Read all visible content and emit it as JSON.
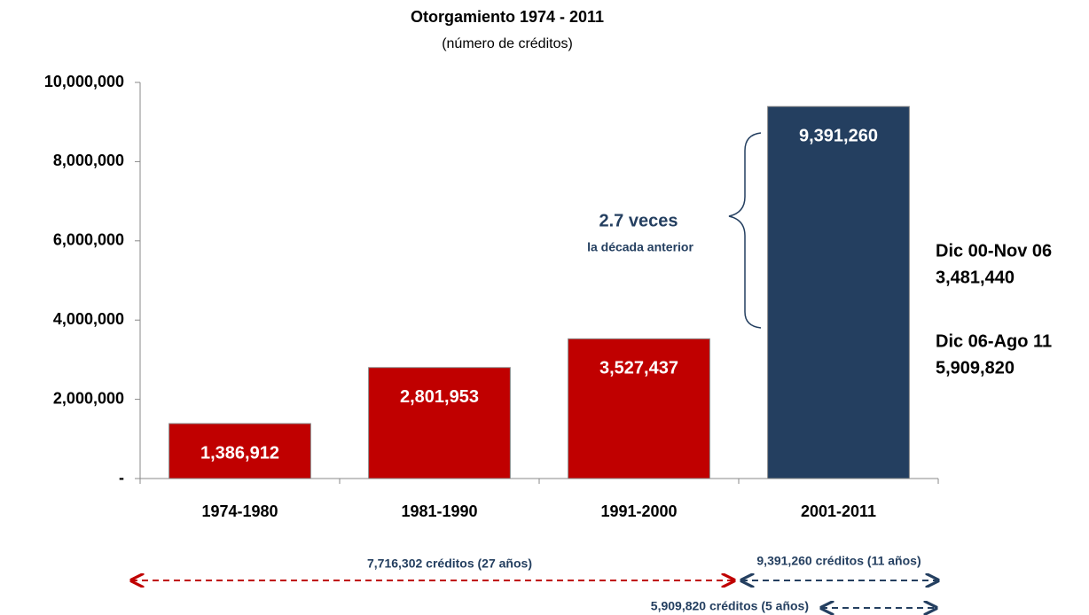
{
  "chart_data": {
    "type": "bar",
    "title": "Otorgamiento 1974 - 2011",
    "subtitle": "(número de créditos)",
    "categories": [
      "1974-1980",
      "1981-1990",
      "1991-2000",
      "2001-2011"
    ],
    "values": [
      1386912,
      2801953,
      3527437,
      9391260
    ],
    "value_labels": [
      "1,386,912",
      "2,801,953",
      "3,527,437",
      "9,391,260"
    ],
    "colors": [
      "#c00000",
      "#c00000",
      "#c00000",
      "#243f60"
    ],
    "ylim": [
      0,
      10000000
    ],
    "yticks": [
      {
        "value": 0,
        "label": "-"
      },
      {
        "value": 2000000,
        "label": "2,000,000"
      },
      {
        "value": 4000000,
        "label": "4,000,000"
      },
      {
        "value": 6000000,
        "label": "6,000,000"
      },
      {
        "value": 8000000,
        "label": "8,000,000"
      },
      {
        "value": 10000000,
        "label": "10,000,000"
      }
    ],
    "grid": false,
    "annotations": {
      "ratio": "2.7 veces",
      "ratio_note": "la década anterior",
      "period1": "Dic 00-Nov 06",
      "period1_value": "3,481,440",
      "period2": "Dic 06-Ago 11",
      "period2_value": "5,909,820",
      "span1": "7,716,302 créditos (27 años)",
      "span2": "9,391,260 créditos (11 años)",
      "span3": "5,909,820 créditos (5 años)"
    }
  }
}
